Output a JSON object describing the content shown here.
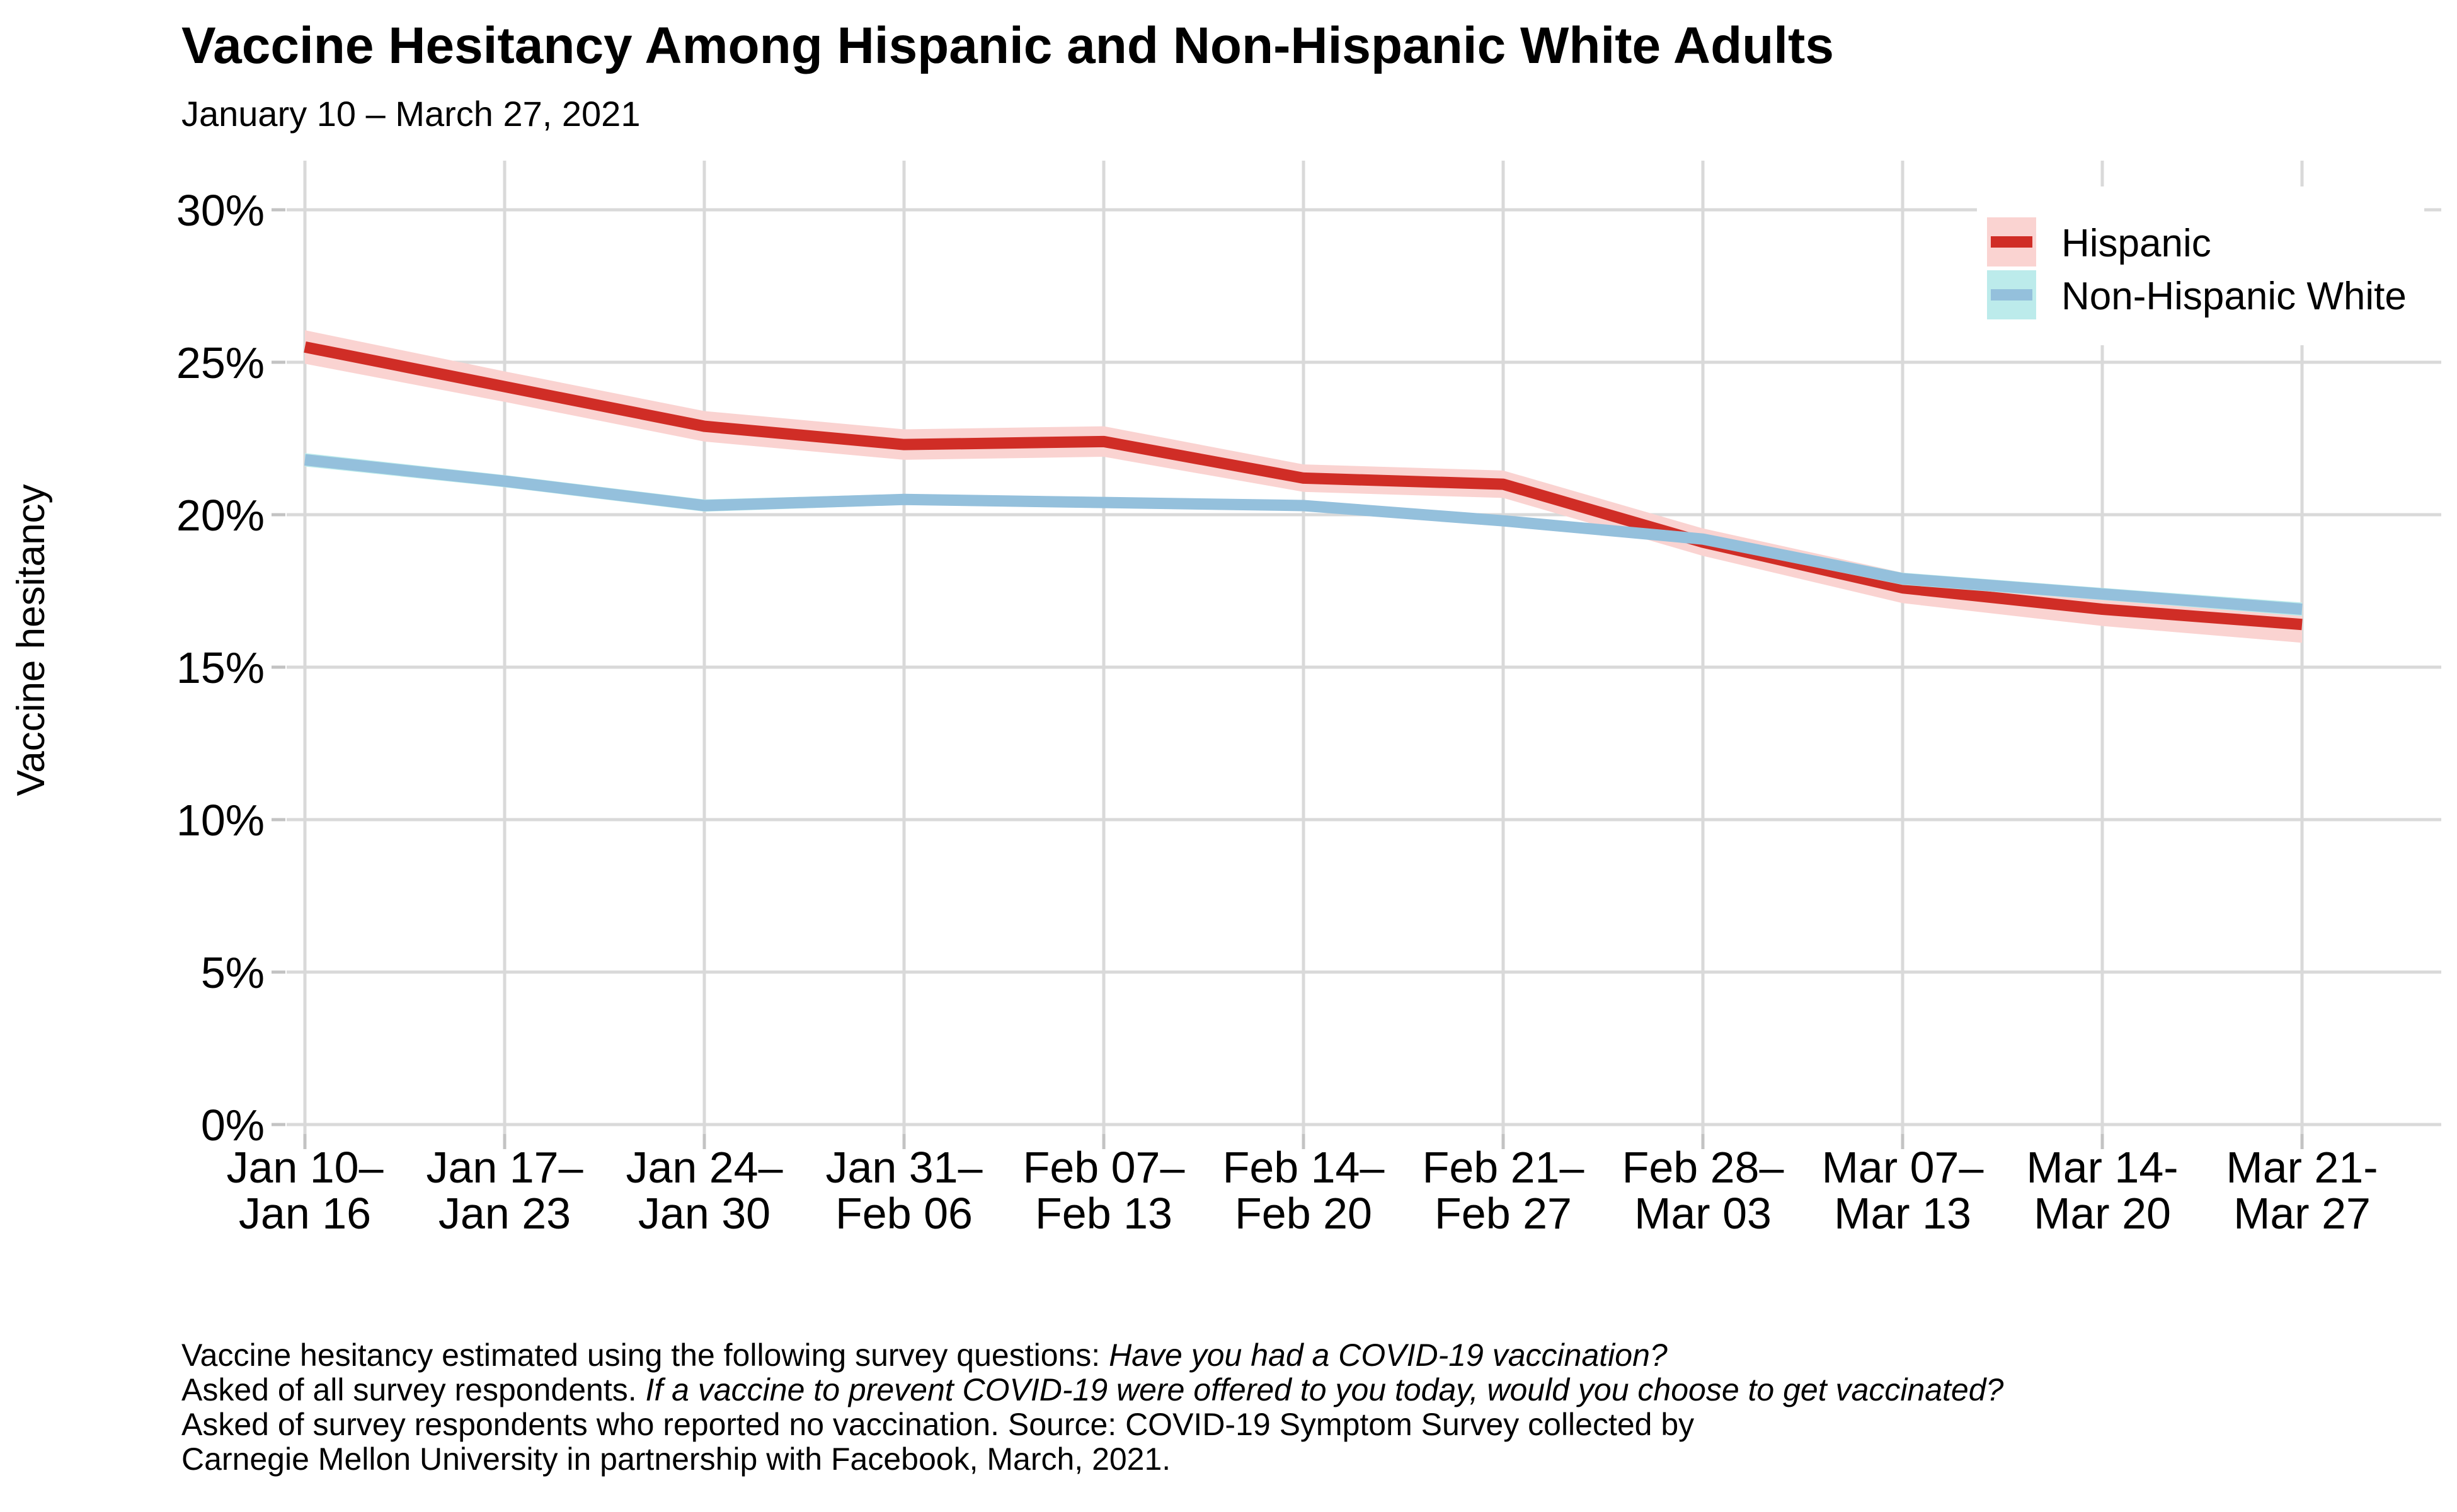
{
  "header": {
    "title": "Vaccine Hesitancy Among Hispanic and Non-Hispanic White Adults",
    "subtitle": "January 10 – March 27, 2021"
  },
  "legend": {
    "position": "top-right",
    "items": [
      {
        "label": "Hispanic"
      },
      {
        "label": "Non-Hispanic White"
      }
    ]
  },
  "caption": {
    "lines": [
      [
        {
          "t": "Vaccine hesitancy estimated using the following survey questions: ",
          "i": false
        },
        {
          "t": "Have you had a COVID-19 vaccination?",
          "i": true
        }
      ],
      [
        {
          "t": "Asked of all survey respondents. ",
          "i": false
        },
        {
          "t": "If a vaccine to prevent COVID-19 were offered to you today, would you choose to get vaccinated?",
          "i": true
        }
      ],
      [
        {
          "t": "Asked of survey respondents who reported no vaccination. Source: COVID-19 Symptom Survey collected by",
          "i": false
        }
      ],
      [
        {
          "t": "Carnegie Mellon University in partnership with Facebook, March, 2021.",
          "i": false
        }
      ]
    ]
  },
  "colors": {
    "grid": "#d9d9d9",
    "tick": "#c3c3c3",
    "text": "#000000",
    "background": "#ffffff"
  },
  "chart_data": {
    "type": "line",
    "title": "Vaccine Hesitancy Among Hispanic and Non-Hispanic White Adults",
    "subtitle": "January 10 – March 27, 2021",
    "xlabel": "",
    "ylabel": "Vaccine hesitancy",
    "ylim": [
      0,
      31
    ],
    "grid": true,
    "legend_position": "top-right",
    "y_ticks": [
      0,
      5,
      10,
      15,
      20,
      25,
      30
    ],
    "y_tick_labels": [
      "0%",
      "5%",
      "10%",
      "15%",
      "20%",
      "25%",
      "30%"
    ],
    "x_tick_labels": [
      [
        "Jan 10–",
        "Jan 16"
      ],
      [
        "Jan 17–",
        "Jan 23"
      ],
      [
        "Jan 24–",
        "Jan 30"
      ],
      [
        "Jan 31–",
        "Feb 06"
      ],
      [
        "Feb 07–",
        "Feb 13"
      ],
      [
        "Feb 14–",
        "Feb 20"
      ],
      [
        "Feb 21–",
        "Feb 27"
      ],
      [
        "Feb 28–",
        "Mar 03"
      ],
      [
        "Mar 07–",
        "Mar 13"
      ],
      [
        "Mar 14-",
        "Mar 20"
      ],
      [
        "Mar 21-",
        "Mar 27"
      ]
    ],
    "series": [
      {
        "name": "Hispanic",
        "color": "#d02d26",
        "band_color": "#fad3d1",
        "values": [
          25.5,
          24.2,
          22.9,
          22.3,
          22.4,
          21.2,
          21.0,
          19.1,
          17.6,
          16.9,
          16.4
        ],
        "ci_half_width": [
          0.55,
          0.5,
          0.5,
          0.5,
          0.5,
          0.45,
          0.45,
          0.45,
          0.5,
          0.55,
          0.6
        ]
      },
      {
        "name": "Non-Hispanic White",
        "color": "#94c0dc",
        "band_color": "#bcebeb",
        "values": [
          21.8,
          21.1,
          20.3,
          20.5,
          20.4,
          20.3,
          19.8,
          19.2,
          17.9,
          17.4,
          16.9
        ],
        "ci_half_width": [
          0.22,
          0.2,
          0.2,
          0.18,
          0.18,
          0.18,
          0.18,
          0.18,
          0.2,
          0.2,
          0.22
        ]
      }
    ]
  }
}
